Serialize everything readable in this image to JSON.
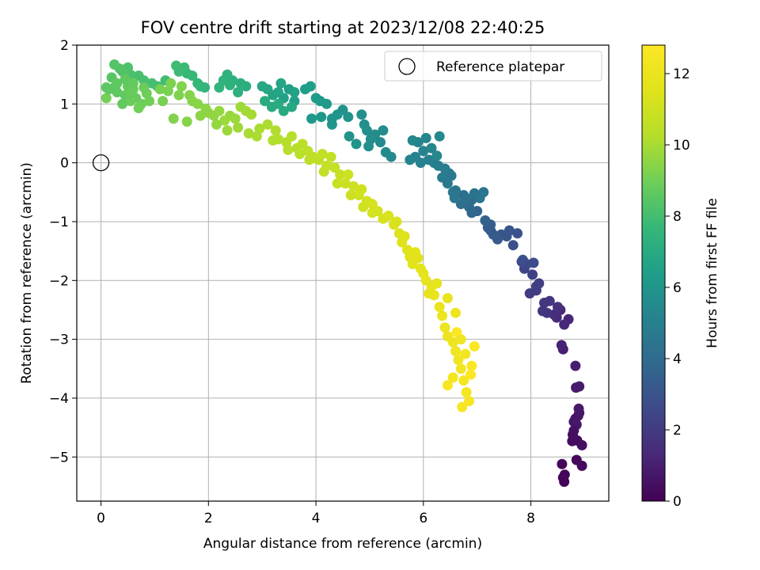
{
  "chart_data": {
    "type": "scatter",
    "title": "FOV centre drift starting at 2023/12/08 22:40:25",
    "xlabel": "Angular distance from reference (arcmin)",
    "ylabel": "Rotation from reference (arcmin)",
    "xlim": [
      -0.45,
      9.45
    ],
    "ylim": [
      -5.75,
      2.0
    ],
    "xticks": [
      0,
      2,
      4,
      6,
      8
    ],
    "yticks": [
      2,
      1,
      0,
      -1,
      -2,
      -3,
      -4,
      -5
    ],
    "xtick_labels": [
      "0",
      "2",
      "4",
      "6",
      "8"
    ],
    "ytick_labels": [
      "2",
      "1",
      "0",
      "−1",
      "−2",
      "−3",
      "−4",
      "−5"
    ],
    "grid": true,
    "legend": {
      "placement": "top-right",
      "entries": [
        "Reference platepar"
      ]
    },
    "reference_point": {
      "x": 0,
      "y": 0,
      "marker": "open-circle"
    },
    "colorbar": {
      "label": "Hours from first FF file",
      "colormap": "viridis",
      "range": [
        0,
        12.8
      ],
      "ticks": [
        0,
        2,
        4,
        6,
        8,
        10,
        12
      ],
      "tick_labels": [
        "0",
        "2",
        "4",
        "6",
        "8",
        "10",
        "12"
      ]
    },
    "columns": [
      "x",
      "y",
      "hours"
    ],
    "points": [
      [
        8.62,
        -5.42,
        0.05
      ],
      [
        8.6,
        -5.35,
        0.1
      ],
      [
        8.63,
        -5.3,
        0.15
      ],
      [
        8.58,
        -5.12,
        0.2
      ],
      [
        8.85,
        -5.05,
        0.25
      ],
      [
        8.95,
        -5.15,
        0.3
      ],
      [
        8.86,
        -4.72,
        0.35
      ],
      [
        8.77,
        -4.73,
        0.4
      ],
      [
        8.78,
        -4.62,
        0.45
      ],
      [
        8.95,
        -4.8,
        0.5
      ],
      [
        8.83,
        -4.35,
        0.55
      ],
      [
        8.88,
        -4.3,
        0.6
      ],
      [
        8.8,
        -4.4,
        0.65
      ],
      [
        8.9,
        -4.25,
        0.7
      ],
      [
        8.85,
        -4.45,
        0.75
      ],
      [
        8.89,
        -4.18,
        0.8
      ],
      [
        8.84,
        -3.82,
        0.85
      ],
      [
        8.9,
        -3.8,
        0.9
      ],
      [
        8.83,
        -3.45,
        0.95
      ],
      [
        8.6,
        -3.17,
        1.0
      ],
      [
        8.57,
        -3.1,
        1.1
      ],
      [
        8.7,
        -2.66,
        1.2
      ],
      [
        8.55,
        -2.5,
        1.3
      ],
      [
        8.48,
        -2.63,
        1.4
      ],
      [
        8.43,
        -2.58,
        1.5
      ],
      [
        8.5,
        -2.45,
        1.6
      ],
      [
        8.3,
        -2.55,
        1.7
      ],
      [
        8.22,
        -2.52,
        1.8
      ],
      [
        8.25,
        -2.38,
        1.9
      ],
      [
        8.1,
        -2.17,
        2.0
      ],
      [
        7.98,
        -2.22,
        2.1
      ],
      [
        8.1,
        -2.1,
        2.2
      ],
      [
        8.03,
        -1.9,
        2.3
      ],
      [
        7.88,
        -1.8,
        2.4
      ],
      [
        7.92,
        -1.72,
        2.5
      ],
      [
        7.83,
        -1.68,
        2.6
      ],
      [
        8.05,
        -1.7,
        2.7
      ],
      [
        7.85,
        -1.65,
        2.8
      ],
      [
        7.67,
        -1.4,
        2.9
      ],
      [
        7.55,
        -1.25,
        3.0
      ],
      [
        7.45,
        -1.22,
        3.1
      ],
      [
        7.38,
        -1.3,
        3.2
      ],
      [
        7.3,
        -1.22,
        3.3
      ],
      [
        7.2,
        -1.1,
        3.4
      ],
      [
        7.25,
        -1.05,
        3.5
      ],
      [
        7.15,
        -0.98,
        3.6
      ],
      [
        7.0,
        -0.82,
        3.7
      ],
      [
        6.9,
        -0.85,
        3.8
      ],
      [
        6.85,
        -0.75,
        3.9
      ],
      [
        6.9,
        -0.63,
        4.0
      ],
      [
        6.75,
        -0.55,
        4.1
      ],
      [
        6.7,
        -0.7,
        4.2
      ],
      [
        6.8,
        -0.6,
        4.3
      ],
      [
        6.95,
        -0.52,
        4.4
      ],
      [
        7.05,
        -0.6,
        4.5
      ],
      [
        7.12,
        -0.5,
        4.55
      ],
      [
        6.6,
        -0.47,
        4.6
      ],
      [
        6.55,
        -0.5,
        4.65
      ],
      [
        6.52,
        -0.22,
        4.7
      ],
      [
        6.48,
        -0.18,
        4.75
      ],
      [
        6.35,
        -0.25,
        4.8
      ],
      [
        6.4,
        -0.1,
        4.85
      ],
      [
        6.28,
        -0.05,
        4.9
      ],
      [
        6.2,
        0.0,
        4.95
      ],
      [
        6.1,
        0.05,
        5.0
      ],
      [
        5.95,
        0.0,
        5.05
      ],
      [
        5.85,
        0.1,
        5.1
      ],
      [
        6.0,
        0.2,
        5.15
      ],
      [
        5.9,
        0.35,
        5.2
      ],
      [
        6.05,
        0.42,
        5.25
      ],
      [
        5.8,
        0.38,
        5.3
      ],
      [
        6.15,
        0.25,
        5.35
      ],
      [
        6.25,
        0.12,
        5.4
      ],
      [
        6.3,
        0.45,
        5.45
      ],
      [
        5.2,
        0.35,
        5.5
      ],
      [
        5.1,
        0.48,
        5.55
      ],
      [
        5.25,
        0.55,
        5.6
      ],
      [
        5.02,
        0.4,
        5.65
      ],
      [
        4.95,
        0.55,
        5.7
      ],
      [
        4.9,
        0.65,
        5.75
      ],
      [
        4.85,
        0.82,
        5.8
      ],
      [
        4.6,
        0.78,
        5.85
      ],
      [
        4.5,
        0.9,
        5.9
      ],
      [
        4.4,
        0.82,
        5.95
      ],
      [
        4.3,
        0.75,
        6.0
      ],
      [
        4.3,
        0.65,
        6.05
      ],
      [
        4.1,
        0.78,
        6.1
      ],
      [
        3.92,
        0.75,
        6.15
      ],
      [
        4.08,
        1.05,
        6.2
      ],
      [
        4.2,
        1.0,
        6.25
      ],
      [
        4.0,
        1.1,
        6.3
      ],
      [
        3.8,
        1.25,
        6.35
      ],
      [
        3.9,
        1.3,
        6.4
      ],
      [
        3.5,
        1.25,
        6.45
      ],
      [
        3.6,
        1.05,
        6.5
      ],
      [
        3.4,
        1.1,
        6.55
      ],
      [
        3.6,
        1.2,
        6.6
      ],
      [
        3.2,
        1.15,
        6.65
      ],
      [
        3.3,
        1.2,
        6.7
      ],
      [
        3.35,
        1.35,
        6.75
      ],
      [
        3.1,
        1.25,
        6.8
      ],
      [
        3.0,
        1.3,
        6.85
      ],
      [
        3.55,
        0.95,
        6.9
      ],
      [
        3.4,
        0.88,
        6.95
      ],
      [
        3.18,
        0.95,
        7.0
      ],
      [
        3.3,
        1.0,
        7.05
      ],
      [
        3.05,
        1.05,
        7.1
      ],
      [
        2.7,
        1.3,
        7.15
      ],
      [
        2.6,
        1.35,
        7.2
      ],
      [
        2.55,
        1.2,
        7.25
      ],
      [
        2.45,
        1.4,
        7.3
      ],
      [
        2.4,
        1.32,
        7.35
      ],
      [
        2.35,
        1.5,
        7.4
      ],
      [
        2.28,
        1.4,
        7.45
      ],
      [
        2.2,
        1.28,
        7.5
      ],
      [
        1.93,
        1.28,
        7.55
      ],
      [
        1.85,
        1.3,
        7.6
      ],
      [
        1.8,
        1.35,
        7.65
      ],
      [
        1.7,
        1.48,
        7.7
      ],
      [
        1.6,
        1.52,
        7.75
      ],
      [
        1.55,
        1.62,
        7.8
      ],
      [
        1.45,
        1.55,
        7.85
      ],
      [
        1.4,
        1.65,
        7.9
      ],
      [
        1.2,
        1.4,
        7.95
      ],
      [
        1.05,
        1.3,
        8.0
      ],
      [
        0.95,
        1.35,
        8.05
      ],
      [
        0.8,
        1.4,
        8.1
      ],
      [
        0.7,
        1.48,
        8.15
      ],
      [
        0.55,
        1.5,
        8.2
      ],
      [
        0.5,
        1.62,
        8.25
      ],
      [
        0.4,
        1.55,
        8.3
      ],
      [
        0.35,
        1.6,
        8.35
      ],
      [
        0.25,
        1.67,
        8.4
      ],
      [
        0.2,
        1.45,
        8.45
      ],
      [
        0.25,
        1.28,
        8.5
      ],
      [
        0.1,
        1.28,
        8.55
      ],
      [
        0.3,
        1.2,
        8.6
      ],
      [
        0.45,
        1.15,
        8.65
      ],
      [
        0.5,
        1.3,
        8.7
      ],
      [
        0.6,
        1.25,
        8.75
      ],
      [
        0.65,
        1.1,
        8.8
      ],
      [
        0.55,
        1.05,
        8.85
      ],
      [
        0.75,
        1.0,
        8.9
      ],
      [
        0.85,
        1.18,
        8.95
      ],
      [
        0.7,
        0.93,
        9.0
      ],
      [
        0.1,
        1.1,
        9.05
      ],
      [
        1.1,
        1.25,
        9.1
      ],
      [
        1.25,
        1.22,
        9.15
      ],
      [
        1.3,
        1.35,
        9.2
      ],
      [
        1.45,
        1.15,
        9.25
      ],
      [
        1.5,
        1.3,
        9.3
      ],
      [
        1.65,
        1.15,
        9.35
      ],
      [
        1.7,
        1.05,
        9.4
      ],
      [
        1.8,
        1.0,
        9.45
      ],
      [
        1.95,
        0.92,
        9.5
      ],
      [
        2.0,
        0.85,
        9.55
      ],
      [
        2.1,
        0.8,
        9.6
      ],
      [
        2.2,
        0.88,
        9.65
      ],
      [
        2.4,
        0.8,
        9.7
      ],
      [
        2.5,
        0.75,
        9.75
      ],
      [
        2.3,
        0.72,
        9.8
      ],
      [
        2.6,
        0.95,
        9.85
      ],
      [
        2.7,
        0.88,
        9.9
      ],
      [
        2.8,
        0.82,
        9.95
      ],
      [
        2.75,
        0.5,
        10.0
      ],
      [
        2.95,
        0.58,
        10.05
      ],
      [
        3.1,
        0.65,
        10.1
      ],
      [
        3.25,
        0.55,
        10.15
      ],
      [
        3.3,
        0.4,
        10.2
      ],
      [
        3.45,
        0.35,
        10.25
      ],
      [
        3.55,
        0.45,
        10.3
      ],
      [
        3.65,
        0.25,
        10.35
      ],
      [
        3.75,
        0.32,
        10.4
      ],
      [
        3.85,
        0.2,
        10.45
      ],
      [
        3.95,
        0.1,
        10.5
      ],
      [
        4.05,
        0.05,
        10.55
      ],
      [
        4.12,
        0.15,
        10.6
      ],
      [
        4.2,
        -0.05,
        10.65
      ],
      [
        4.28,
        0.1,
        10.7
      ],
      [
        4.35,
        -0.08,
        10.75
      ],
      [
        4.45,
        -0.2,
        10.8
      ],
      [
        4.55,
        -0.35,
        10.85
      ],
      [
        4.6,
        -0.2,
        10.9
      ],
      [
        4.7,
        -0.4,
        10.95
      ],
      [
        4.8,
        -0.55,
        11.0
      ],
      [
        4.85,
        -0.45,
        11.05
      ],
      [
        4.95,
        -0.65,
        11.1
      ],
      [
        5.05,
        -0.7,
        11.15
      ],
      [
        5.15,
        -0.82,
        11.2
      ],
      [
        5.25,
        -0.95,
        11.25
      ],
      [
        5.35,
        -0.9,
        11.3
      ],
      [
        5.45,
        -1.05,
        11.35
      ],
      [
        5.55,
        -1.2,
        11.4
      ],
      [
        5.6,
        -1.35,
        11.45
      ],
      [
        5.7,
        -1.48,
        11.5
      ],
      [
        5.75,
        -1.6,
        11.55
      ],
      [
        5.8,
        -1.72,
        11.6
      ],
      [
        5.85,
        -1.52,
        11.65
      ],
      [
        5.95,
        -1.8,
        11.7
      ],
      [
        6.0,
        -1.88,
        11.75
      ],
      [
        6.05,
        -2.0,
        11.8
      ],
      [
        6.15,
        -2.1,
        11.85
      ],
      [
        6.2,
        -2.25,
        11.9
      ],
      [
        6.3,
        -2.45,
        11.95
      ],
      [
        6.35,
        -2.6,
        12.0
      ],
      [
        6.4,
        -2.8,
        12.05
      ],
      [
        6.45,
        -2.95,
        12.1
      ],
      [
        6.55,
        -3.05,
        12.15
      ],
      [
        6.6,
        -3.2,
        12.2
      ],
      [
        6.65,
        -3.35,
        12.25
      ],
      [
        6.7,
        -3.5,
        12.3
      ],
      [
        6.55,
        -3.65,
        12.35
      ],
      [
        6.75,
        -3.7,
        12.4
      ],
      [
        6.8,
        -3.9,
        12.45
      ],
      [
        6.85,
        -4.05,
        12.5
      ],
      [
        6.72,
        -4.15,
        12.55
      ],
      [
        6.45,
        -3.78,
        12.6
      ],
      [
        6.9,
        -3.45,
        12.65
      ],
      [
        6.95,
        -3.12,
        12.7
      ],
      [
        6.62,
        -2.88,
        12.75
      ],
      [
        6.88,
        -3.6,
        12.8
      ],
      [
        5.5,
        -1.0,
        11.35
      ],
      [
        5.65,
        -1.25,
        11.45
      ],
      [
        5.9,
        -1.62,
        11.6
      ],
      [
        6.1,
        -2.22,
        11.85
      ],
      [
        6.25,
        -2.05,
        11.8
      ],
      [
        6.45,
        -2.3,
        11.95
      ],
      [
        6.6,
        -2.55,
        12.05
      ],
      [
        6.7,
        -3.0,
        12.2
      ],
      [
        6.78,
        -3.25,
        12.3
      ],
      [
        4.65,
        -0.55,
        10.95
      ],
      [
        4.88,
        -0.75,
        11.05
      ],
      [
        5.05,
        -0.85,
        11.15
      ],
      [
        4.4,
        -0.35,
        10.85
      ],
      [
        4.15,
        -0.15,
        10.65
      ],
      [
        3.88,
        0.05,
        10.5
      ],
      [
        3.7,
        0.15,
        10.4
      ],
      [
        3.48,
        0.22,
        10.3
      ],
      [
        3.2,
        0.38,
        10.2
      ],
      [
        2.9,
        0.45,
        10.05
      ],
      [
        2.55,
        0.6,
        9.85
      ],
      [
        2.35,
        0.55,
        9.75
      ],
      [
        2.15,
        0.65,
        9.65
      ],
      [
        1.85,
        0.8,
        9.5
      ],
      [
        1.6,
        0.7,
        9.4
      ],
      [
        1.35,
        0.75,
        9.3
      ],
      [
        1.15,
        1.05,
        9.15
      ],
      [
        0.9,
        1.05,
        9.0
      ],
      [
        0.4,
        1.0,
        8.7
      ],
      [
        0.15,
        1.25,
        8.55
      ],
      [
        0.6,
        1.35,
        8.75
      ],
      [
        0.8,
        1.28,
        8.85
      ],
      [
        0.45,
        1.42,
        8.65
      ],
      [
        0.3,
        1.35,
        8.6
      ],
      [
        0.55,
        1.18,
        8.8
      ],
      [
        4.62,
        0.45,
        5.9
      ],
      [
        4.75,
        0.32,
        5.95
      ],
      [
        4.98,
        0.28,
        5.75
      ],
      [
        5.3,
        0.18,
        5.55
      ],
      [
        5.4,
        0.1,
        5.5
      ],
      [
        5.75,
        0.05,
        5.2
      ],
      [
        6.45,
        -0.35,
        4.7
      ],
      [
        6.58,
        -0.6,
        4.6
      ],
      [
        7.25,
        -1.15,
        3.3
      ],
      [
        7.6,
        -1.15,
        3.05
      ],
      [
        7.75,
        -1.2,
        2.95
      ],
      [
        8.15,
        -2.05,
        2.15
      ],
      [
        8.35,
        -2.35,
        1.85
      ],
      [
        8.62,
        -2.75,
        1.35
      ],
      [
        8.8,
        -4.55,
        0.5
      ]
    ]
  }
}
